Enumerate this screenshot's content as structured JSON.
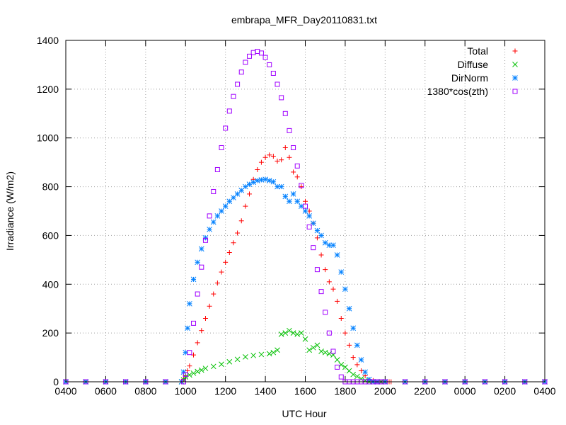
{
  "chart_data": {
    "type": "scatter",
    "title": "embrapa_MFR_Day20110831.txt",
    "xlabel": "UTC Hour",
    "ylabel": "Irradiance (W/m2)",
    "xlim": [
      0,
      24
    ],
    "ylim": [
      0,
      1400
    ],
    "x_unit": "hours elapsed from 0400 UTC; tick labels show the UTC hour",
    "x_tick_labels": [
      "0400",
      "0600",
      "0800",
      "1000",
      "1200",
      "1400",
      "1600",
      "1800",
      "2000",
      "2200",
      "0000",
      "0200",
      "0400"
    ],
    "y_ticks": [
      0,
      200,
      400,
      600,
      800,
      1000,
      1200,
      1400
    ],
    "grid": true,
    "legend_position": "top-right",
    "series": [
      {
        "name": "Total",
        "marker": "plus",
        "color": "#ff0000",
        "x": [
          0,
          1,
          2,
          3,
          4,
          5,
          5.8,
          5.9,
          6,
          6.1,
          6.2,
          6.4,
          6.6,
          6.8,
          7,
          7.2,
          7.4,
          7.6,
          7.8,
          8,
          8.2,
          8.4,
          8.6,
          8.8,
          9,
          9.2,
          9.4,
          9.6,
          9.8,
          10,
          10.2,
          10.4,
          10.6,
          10.8,
          11,
          11.2,
          11.4,
          11.6,
          11.8,
          12,
          12.2,
          12.4,
          12.6,
          12.8,
          13,
          13.2,
          13.4,
          13.6,
          13.8,
          14,
          14.2,
          14.4,
          14.6,
          14.8,
          15,
          15.2,
          15.4,
          15.6,
          15.8,
          16,
          16.1,
          16.2,
          16.3,
          17,
          18,
          19,
          20,
          21,
          22,
          23,
          24
        ],
        "y": [
          0,
          0,
          0,
          0,
          0,
          0,
          0,
          10,
          25,
          45,
          65,
          110,
          160,
          210,
          260,
          310,
          360,
          405,
          450,
          490,
          530,
          570,
          610,
          660,
          720,
          770,
          830,
          870,
          900,
          920,
          930,
          925,
          905,
          910,
          960,
          920,
          860,
          840,
          800,
          740,
          700,
          650,
          590,
          520,
          460,
          410,
          380,
          330,
          260,
          200,
          150,
          100,
          70,
          45,
          25,
          10,
          5,
          0,
          0,
          0,
          0,
          0,
          0,
          0,
          0,
          0,
          0,
          0,
          0,
          0,
          0
        ]
      },
      {
        "name": "Diffuse",
        "marker": "cross",
        "color": "#00c000",
        "x": [
          0,
          1,
          2,
          3,
          4,
          5,
          5.8,
          5.9,
          6,
          6.2,
          6.4,
          6.6,
          6.8,
          7,
          7.4,
          7.8,
          8.2,
          8.6,
          9,
          9.4,
          9.8,
          10.2,
          10.4,
          10.6,
          10.8,
          11,
          11.2,
          11.4,
          11.6,
          11.8,
          12,
          12.2,
          12.4,
          12.6,
          12.8,
          13,
          13.2,
          13.4,
          13.6,
          13.8,
          14,
          14.2,
          14.4,
          14.6,
          14.8,
          15,
          15.2,
          15.4,
          15.6,
          15.8,
          16,
          17,
          18,
          19,
          20,
          21,
          22,
          23,
          24
        ],
        "y": [
          0,
          0,
          0,
          0,
          0,
          0,
          0,
          8,
          20,
          28,
          35,
          42,
          48,
          55,
          63,
          72,
          82,
          92,
          102,
          108,
          112,
          115,
          120,
          130,
          195,
          200,
          210,
          200,
          195,
          200,
          175,
          130,
          140,
          150,
          125,
          120,
          115,
          110,
          90,
          70,
          60,
          45,
          30,
          22,
          12,
          5,
          0,
          0,
          0,
          0,
          0,
          0,
          0,
          0,
          0,
          0,
          0,
          0,
          0
        ]
      },
      {
        "name": "DirNorm",
        "marker": "star",
        "color": "#0080ff",
        "x": [
          0,
          1,
          2,
          3,
          4,
          5,
          5.8,
          5.9,
          6,
          6.1,
          6.2,
          6.4,
          6.6,
          6.8,
          7,
          7.2,
          7.4,
          7.6,
          7.8,
          8,
          8.2,
          8.4,
          8.6,
          8.8,
          9,
          9.2,
          9.4,
          9.6,
          9.8,
          10,
          10.2,
          10.4,
          10.6,
          10.8,
          11,
          11.2,
          11.4,
          11.6,
          11.8,
          12,
          12.2,
          12.4,
          12.6,
          12.8,
          13,
          13.2,
          13.4,
          13.6,
          13.8,
          14,
          14.2,
          14.4,
          14.6,
          14.8,
          15,
          15.2,
          15.4,
          15.6,
          16,
          17,
          18,
          19,
          20,
          21,
          22,
          23,
          24
        ],
        "y": [
          0,
          0,
          0,
          0,
          0,
          0,
          0,
          40,
          120,
          220,
          320,
          420,
          490,
          545,
          590,
          625,
          655,
          680,
          700,
          720,
          740,
          755,
          770,
          785,
          800,
          810,
          818,
          825,
          828,
          830,
          825,
          820,
          800,
          800,
          760,
          740,
          770,
          740,
          720,
          700,
          680,
          650,
          620,
          600,
          570,
          560,
          560,
          520,
          450,
          380,
          300,
          220,
          150,
          90,
          40,
          10,
          0,
          0,
          0,
          0,
          0,
          0,
          0,
          0,
          0,
          0,
          0
        ]
      },
      {
        "name": "1380*cos(zth)",
        "marker": "square",
        "color": "#a000ff",
        "x": [
          0,
          1,
          2,
          3,
          4,
          5,
          5.9,
          6,
          6.2,
          6.4,
          6.6,
          6.8,
          7,
          7.2,
          7.4,
          7.6,
          7.8,
          8,
          8.2,
          8.4,
          8.6,
          8.8,
          9,
          9.2,
          9.4,
          9.6,
          9.8,
          10,
          10.2,
          10.4,
          10.6,
          10.8,
          11,
          11.2,
          11.4,
          11.6,
          11.8,
          12,
          12.2,
          12.4,
          12.6,
          12.8,
          13,
          13.2,
          13.4,
          13.6,
          13.8,
          14,
          14.2,
          14.4,
          14.6,
          14.8,
          15,
          15.2,
          15.4,
          15.6,
          15.7,
          15.8,
          16,
          17,
          18,
          19,
          20,
          21,
          22,
          23,
          24
        ],
        "y": [
          0,
          0,
          0,
          0,
          0,
          0,
          0,
          30,
          120,
          240,
          360,
          470,
          580,
          680,
          780,
          870,
          960,
          1040,
          1110,
          1170,
          1220,
          1270,
          1310,
          1335,
          1350,
          1355,
          1348,
          1330,
          1300,
          1265,
          1220,
          1165,
          1100,
          1030,
          960,
          885,
          805,
          720,
          635,
          550,
          460,
          370,
          285,
          200,
          125,
          60,
          20,
          0,
          0,
          0,
          0,
          0,
          0,
          0,
          0,
          0,
          0,
          0,
          0,
          0,
          0,
          0,
          0,
          0,
          0,
          0,
          0
        ]
      }
    ]
  }
}
